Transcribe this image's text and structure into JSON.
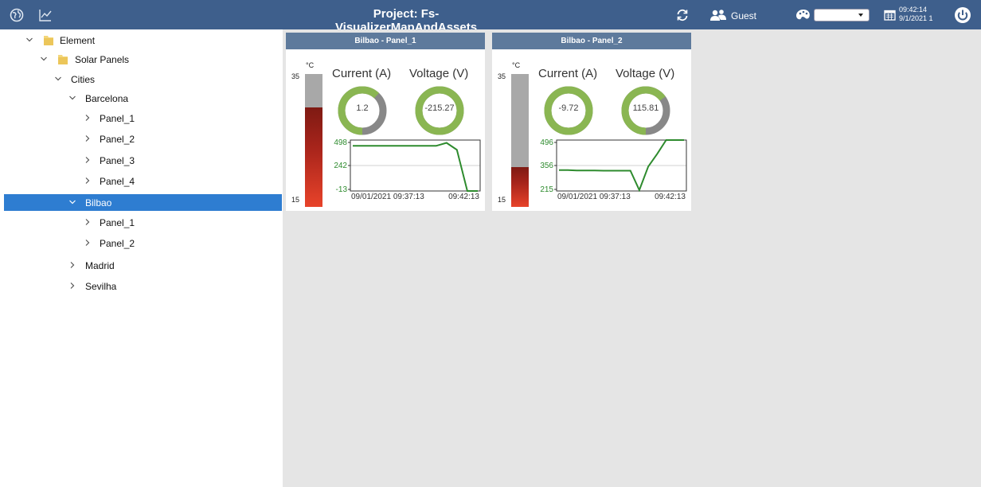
{
  "topbar": {
    "title": "Project: Fs-VisualizerMapAndAssets",
    "user": "Guest",
    "time": "09:42:14",
    "date": "9/1/2021 1",
    "icons": [
      "globe-icon",
      "trend-chart-icon",
      "refresh-icon",
      "users-icon",
      "palette-icon",
      "calendar-icon",
      "power-icon"
    ],
    "theme_value": ""
  },
  "tree": {
    "root": "Element",
    "solar": "Solar Panels",
    "cities": "Cities",
    "barcelona": "Barcelona",
    "barcelona_panels": [
      "Panel_1",
      "Panel_2",
      "Panel_3",
      "Panel_4"
    ],
    "bilbao": "Bilbao",
    "bilbao_panels": [
      "Panel_1",
      "Panel_2"
    ],
    "madrid": "Madrid",
    "sevilha": "Sevilha",
    "selected": "Bilbao"
  },
  "colors": {
    "accent": "#3e5f8c",
    "selected": "#2e7dd1",
    "gauge_green": "#8ab652",
    "gauge_gray": "#888888",
    "line": "#2e8b2e"
  },
  "panels": [
    {
      "title": "Bilbao - Panel_1",
      "thermo": {
        "unit": "°C",
        "max": "35",
        "min": "15",
        "level": 0.75
      },
      "current": {
        "label": "Current (A)",
        "value": "1.2",
        "fraction": 0.62
      },
      "voltage": {
        "label": "Voltage (V)",
        "value": "-215.27",
        "fraction": 1.0
      },
      "chart_data": {
        "type": "line",
        "y_ticks": [
          "498",
          "242",
          "-13"
        ],
        "ylim": [
          -13,
          498
        ],
        "x_ticks": [
          "09/01/2021 09:37:13",
          "09:42:13"
        ],
        "series": [
          {
            "values": [
              440,
              440,
              440,
              440,
              440,
              440,
              440,
              440,
              440,
              470,
              400,
              -13,
              -13
            ]
          }
        ]
      }
    },
    {
      "title": "Bilbao - Panel_2",
      "thermo": {
        "unit": "°C",
        "max": "35",
        "min": "15",
        "level": 0.3
      },
      "current": {
        "label": "Current (A)",
        "value": "-9.72",
        "fraction": 1.0
      },
      "voltage": {
        "label": "Voltage (V)",
        "value": "115.81",
        "fraction": 0.65
      },
      "chart_data": {
        "type": "line",
        "y_ticks": [
          "496",
          "356",
          "215"
        ],
        "ylim": [
          215,
          496
        ],
        "x_ticks": [
          "09/01/2021 09:37:13",
          "09:42:13"
        ],
        "series": [
          {
            "values": [
              330,
              330,
              328,
              328,
              328,
              327,
              327,
              327,
              327,
              220,
              350,
              420,
              496,
              496,
              496
            ]
          }
        ]
      }
    }
  ]
}
